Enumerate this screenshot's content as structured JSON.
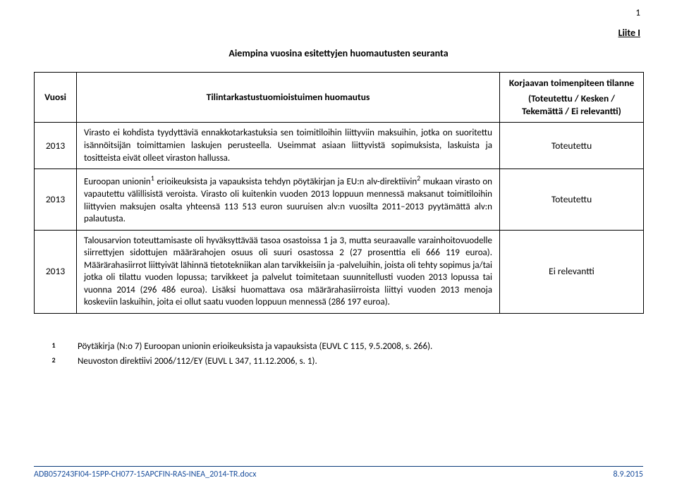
{
  "page_number": "1",
  "liite": "Liite I",
  "title": "Aiempina vuosina esitettyjen huomautusten seuranta",
  "head": {
    "year": "Vuosi",
    "comment": "Tilintarkastustuomioistuimen huomautus",
    "status_top": "Korjaavan toimenpiteen tilanne",
    "status_sub": "(Toteutettu / Kesken / Tekemättä / Ei relevantti)"
  },
  "rows": [
    {
      "year": "2013",
      "comment": "Virasto ei kohdista tyydyttäviä ennakkotarkastuksia sen toimitiloihin liittyviin maksuihin, jotka on suoritettu isännöitsijän toimittamien laskujen perusteella. Useimmat asiaan liittyvistä sopimuksista, laskuista ja tositteista eivät olleet viraston hallussa.",
      "status": "Toteutettu"
    },
    {
      "year": "2013",
      "comment_html": "Euroopan unionin<sup>1</sup> erioikeuksista ja vapauksista tehdyn pöytäkirjan ja EU:n alv-direktiivin<sup>2</sup> mukaan virasto on vapautettu välillisistä veroista. Virasto oli kuitenkin vuoden 2013 loppuun mennessä maksanut toimitiloihin liittyvien maksujen osalta yhteensä 113 513 euron suuruisen alv:n vuosilta 2011–2013 pyytämättä alv:n palautusta.",
      "status": "Toteutettu"
    },
    {
      "year": "2013",
      "comment": "Talousarvion toteuttamisaste oli hyväksyttävää tasoa osastoissa 1 ja 3, mutta seuraavalle varainhoitovuodelle siirrettyjen sidottujen määrärahojen osuus oli suuri osastossa 2 (27 prosenttia eli 666 119 euroa). Määrärahasiirrot liittyivät lähinnä tietotekniikan alan tarvikkeisiin ja -palveluihin, joista oli tehty sopimus ja/tai jotka oli tilattu vuoden lopussa; tarvikkeet ja palvelut toimitetaan suunnitellusti vuoden 2013 lopussa tai vuonna 2014 (296 486 euroa). Lisäksi huomattava osa määrärahasiirroista liittyi vuoden 2013 menoja koskeviin laskuihin, joita ei ollut saatu vuoden loppuun mennessä (286 197 euroa).",
      "status": "Ei relevantti"
    }
  ],
  "footnotes": [
    {
      "num": "1",
      "text": "Pöytäkirja (N:o 7) Euroopan unionin erioikeuksista ja vapauksista (EUVL C 115, 9.5.2008, s. 266)."
    },
    {
      "num": "2",
      "text": "Neuvoston direktiivi 2006/112/EY (EUVL L 347, 11.12.2006, s. 1)."
    }
  ],
  "footer": {
    "doc": "ADB057243FI04-15PP-CH077-15APCFIN-RAS-INEA_2014-TR.docx",
    "date": "8.9.2015",
    "color": "#1a4e9c",
    "rule_color": "#0a3a7a"
  },
  "colors": {
    "text": "#000000",
    "background": "#ffffff",
    "border": "#000000"
  }
}
